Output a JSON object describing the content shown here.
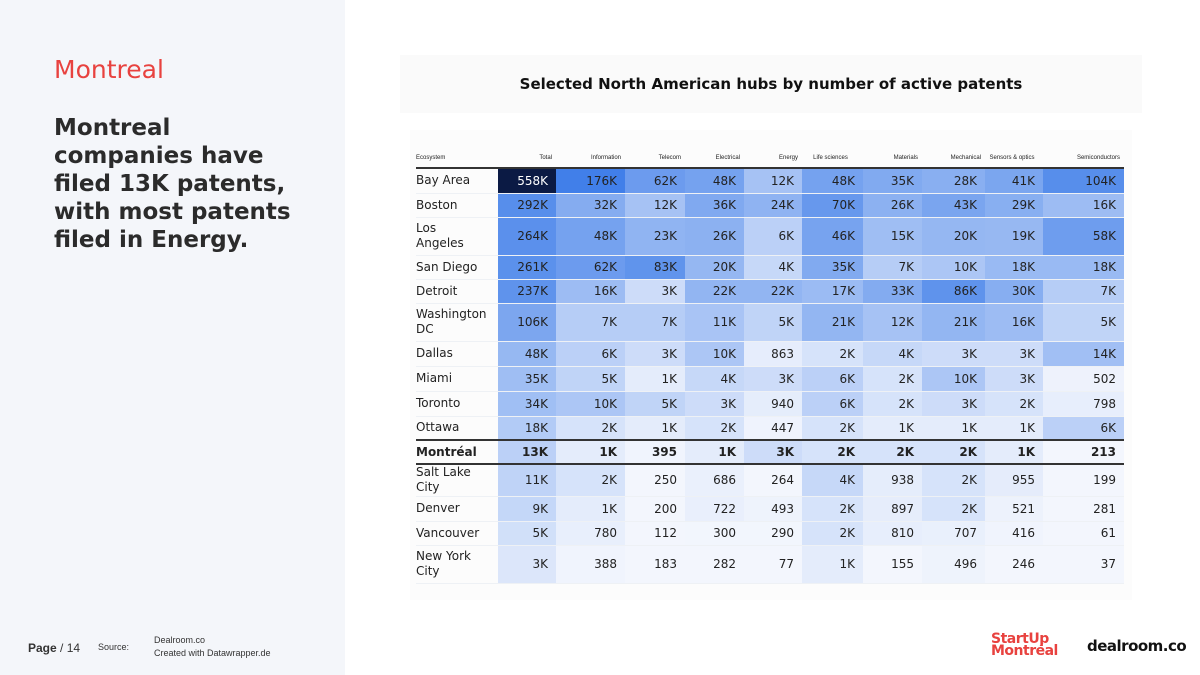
{
  "sidebar": {
    "city": "Montreal",
    "headline": "Montreal companies have filed 13K patents, with most patents filed in Energy."
  },
  "footer": {
    "page_word": "Page",
    "page_number": "/ 14",
    "source_label": "Source:",
    "source_line1": "Dealroom.co",
    "source_line2": "Created with Datawrapper.de"
  },
  "logos": {
    "startup_line1": "StartUp",
    "startup_line2": "Montréal",
    "dealroom": "dealroom.co"
  },
  "colors": {
    "accent_red": "#e8423f",
    "heat_low": "#f3f6fd",
    "heat_high": "#3b7be8",
    "heat_max": "#0b1a44"
  },
  "chart_data": {
    "type": "table",
    "title": "Selected North American hubs by number of active patents",
    "columns": [
      "Ecosystem",
      "Total",
      "Information",
      "Telecom",
      "Electrical",
      "Energy",
      "Life sciences",
      "Materials",
      "Mechanical",
      "Sensors & optics",
      "Semiconductors"
    ],
    "highlight_row": "Montréal",
    "rows": [
      {
        "name": "Bay Area",
        "labels": [
          "558K",
          "176K",
          "62K",
          "48K",
          "12K",
          "48K",
          "35K",
          "28K",
          "41K",
          "104K"
        ],
        "values": [
          558000,
          176000,
          62000,
          48000,
          12000,
          48000,
          35000,
          28000,
          41000,
          104000
        ]
      },
      {
        "name": "Boston",
        "labels": [
          "292K",
          "32K",
          "12K",
          "36K",
          "24K",
          "70K",
          "26K",
          "43K",
          "29K",
          "16K"
        ],
        "values": [
          292000,
          32000,
          12000,
          36000,
          24000,
          70000,
          26000,
          43000,
          29000,
          16000
        ]
      },
      {
        "name": "Los Angeles",
        "labels": [
          "264K",
          "48K",
          "23K",
          "26K",
          "6K",
          "46K",
          "15K",
          "20K",
          "19K",
          "58K"
        ],
        "values": [
          264000,
          48000,
          23000,
          26000,
          6000,
          46000,
          15000,
          20000,
          19000,
          58000
        ]
      },
      {
        "name": "San Diego",
        "labels": [
          "261K",
          "62K",
          "83K",
          "20K",
          "4K",
          "35K",
          "7K",
          "10K",
          "18K",
          "18K"
        ],
        "values": [
          261000,
          62000,
          83000,
          20000,
          4000,
          35000,
          7000,
          10000,
          18000,
          18000
        ]
      },
      {
        "name": "Detroit",
        "labels": [
          "237K",
          "16K",
          "3K",
          "22K",
          "22K",
          "17K",
          "33K",
          "86K",
          "30K",
          "7K"
        ],
        "values": [
          237000,
          16000,
          3000,
          22000,
          22000,
          17000,
          33000,
          86000,
          30000,
          7000
        ]
      },
      {
        "name": "Washington DC",
        "labels": [
          "106K",
          "7K",
          "7K",
          "11K",
          "5K",
          "21K",
          "12K",
          "21K",
          "16K",
          "5K"
        ],
        "values": [
          106000,
          7000,
          7000,
          11000,
          5000,
          21000,
          12000,
          21000,
          16000,
          5000
        ]
      },
      {
        "name": "Dallas",
        "labels": [
          "48K",
          "6K",
          "3K",
          "10K",
          "863",
          "2K",
          "4K",
          "3K",
          "3K",
          "14K"
        ],
        "values": [
          48000,
          6000,
          3000,
          10000,
          863,
          2000,
          4000,
          3000,
          3000,
          14000
        ]
      },
      {
        "name": "Miami",
        "labels": [
          "35K",
          "5K",
          "1K",
          "4K",
          "3K",
          "6K",
          "2K",
          "10K",
          "3K",
          "502"
        ],
        "values": [
          35000,
          5000,
          1000,
          4000,
          3000,
          6000,
          2000,
          10000,
          3000,
          502
        ]
      },
      {
        "name": "Toronto",
        "labels": [
          "34K",
          "10K",
          "5K",
          "3K",
          "940",
          "6K",
          "2K",
          "3K",
          "2K",
          "798"
        ],
        "values": [
          34000,
          10000,
          5000,
          3000,
          940,
          6000,
          2000,
          3000,
          2000,
          798
        ]
      },
      {
        "name": "Ottawa",
        "labels": [
          "18K",
          "2K",
          "1K",
          "2K",
          "447",
          "2K",
          "1K",
          "1K",
          "1K",
          "6K"
        ],
        "values": [
          18000,
          2000,
          1000,
          2000,
          447,
          2000,
          1000,
          1000,
          1000,
          6000
        ]
      },
      {
        "name": "Montréal",
        "labels": [
          "13K",
          "1K",
          "395",
          "1K",
          "3K",
          "2K",
          "2K",
          "2K",
          "1K",
          "213"
        ],
        "values": [
          13000,
          1000,
          395,
          1000,
          3000,
          2000,
          2000,
          2000,
          1000,
          213
        ]
      },
      {
        "name": "Salt Lake City",
        "labels": [
          "11K",
          "2K",
          "250",
          "686",
          "264",
          "4K",
          "938",
          "2K",
          "955",
          "199"
        ],
        "values": [
          11000,
          2000,
          250,
          686,
          264,
          4000,
          938,
          2000,
          955,
          199
        ]
      },
      {
        "name": "Denver",
        "labels": [
          "9K",
          "1K",
          "200",
          "722",
          "493",
          "2K",
          "897",
          "2K",
          "521",
          "281"
        ],
        "values": [
          9000,
          1000,
          200,
          722,
          493,
          2000,
          897,
          2000,
          521,
          281
        ]
      },
      {
        "name": "Vancouver",
        "labels": [
          "5K",
          "780",
          "112",
          "300",
          "290",
          "2K",
          "810",
          "707",
          "416",
          "61"
        ],
        "values": [
          5000,
          780,
          112,
          300,
          290,
          2000,
          810,
          707,
          416,
          61
        ]
      },
      {
        "name": "New York City",
        "labels": [
          "3K",
          "388",
          "183",
          "282",
          "77",
          "1K",
          "155",
          "496",
          "246",
          "37"
        ],
        "values": [
          3000,
          388,
          183,
          282,
          77,
          1000,
          155,
          496,
          246,
          37
        ]
      }
    ]
  }
}
